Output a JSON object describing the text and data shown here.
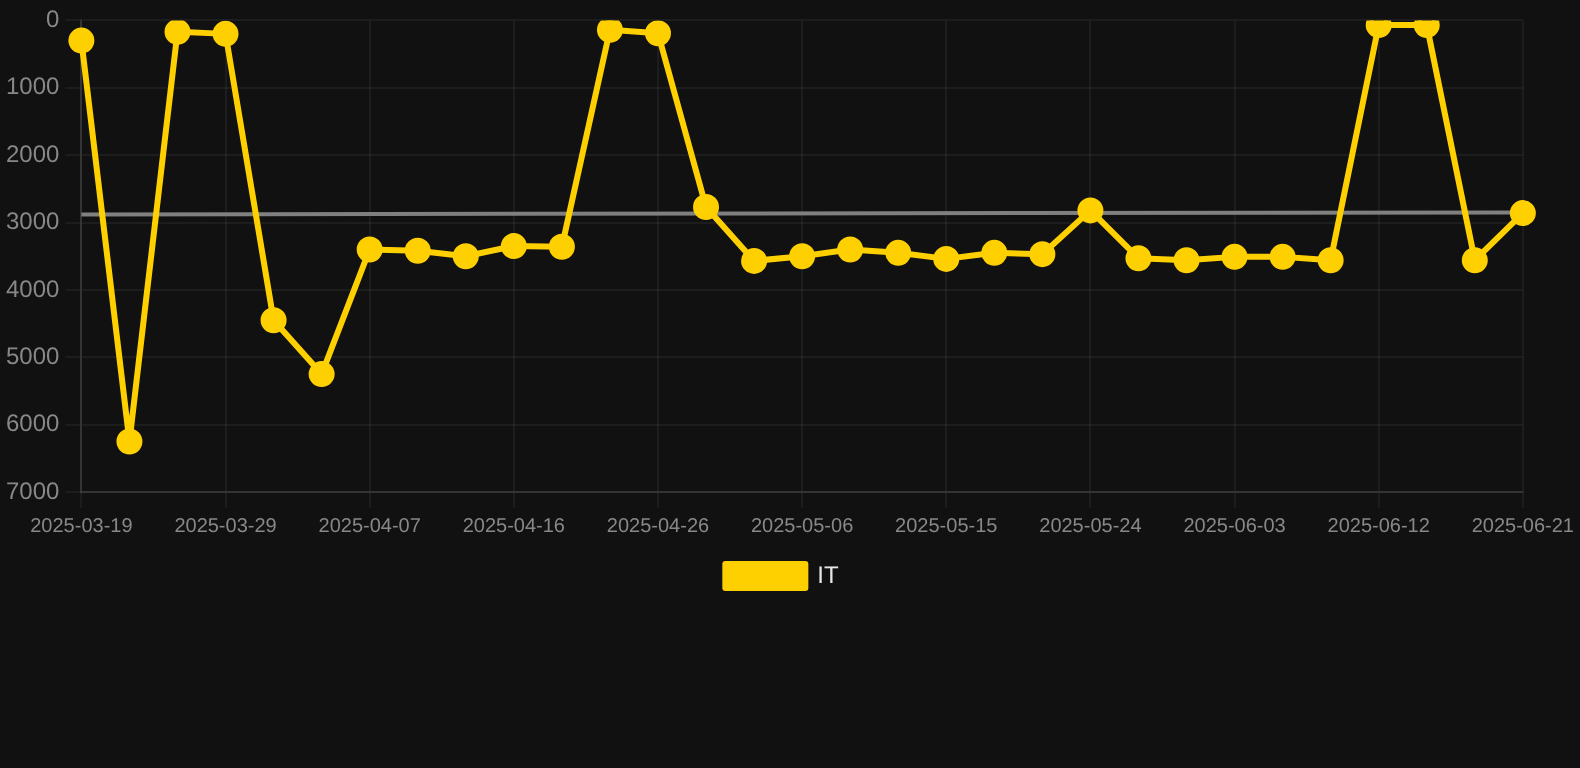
{
  "chart_data": {
    "type": "line",
    "categories": [
      "2025-03-19",
      null,
      null,
      "2025-03-29",
      null,
      null,
      "2025-04-07",
      null,
      null,
      "2025-04-16",
      null,
      null,
      "2025-04-26",
      null,
      null,
      "2025-05-06",
      null,
      null,
      "2025-05-15",
      null,
      null,
      "2025-05-24",
      null,
      null,
      "2025-06-03",
      null,
      null,
      "2025-06-12",
      null,
      null,
      "2025-06-21"
    ],
    "series": [
      {
        "name": "IT",
        "color": "#ffd000",
        "values": [
          300,
          6250,
          170,
          200,
          4450,
          5250,
          3400,
          3420,
          3500,
          3350,
          3360,
          140,
          190,
          2770,
          3570,
          3500,
          3400,
          3450,
          3540,
          3450,
          3470,
          2820,
          3530,
          3560,
          3510,
          3510,
          3560,
          70,
          70,
          3560,
          2860
        ]
      },
      {
        "type": "line",
        "color": "#808080",
        "values": [
          2880,
          null,
          null,
          null,
          null,
          null,
          null,
          null,
          null,
          null,
          null,
          null,
          null,
          null,
          null,
          null,
          null,
          null,
          null,
          null,
          null,
          null,
          null,
          null,
          null,
          null,
          null,
          null,
          null,
          null,
          2850
        ],
        "marker": "none"
      }
    ],
    "ylim": [
      7000,
      0
    ],
    "yticks": [
      0,
      1000,
      2000,
      3000,
      4000,
      5000,
      6000,
      7000
    ],
    "grid": true,
    "legend": "bottom",
    "marker": "circle",
    "line_style": "solid"
  }
}
